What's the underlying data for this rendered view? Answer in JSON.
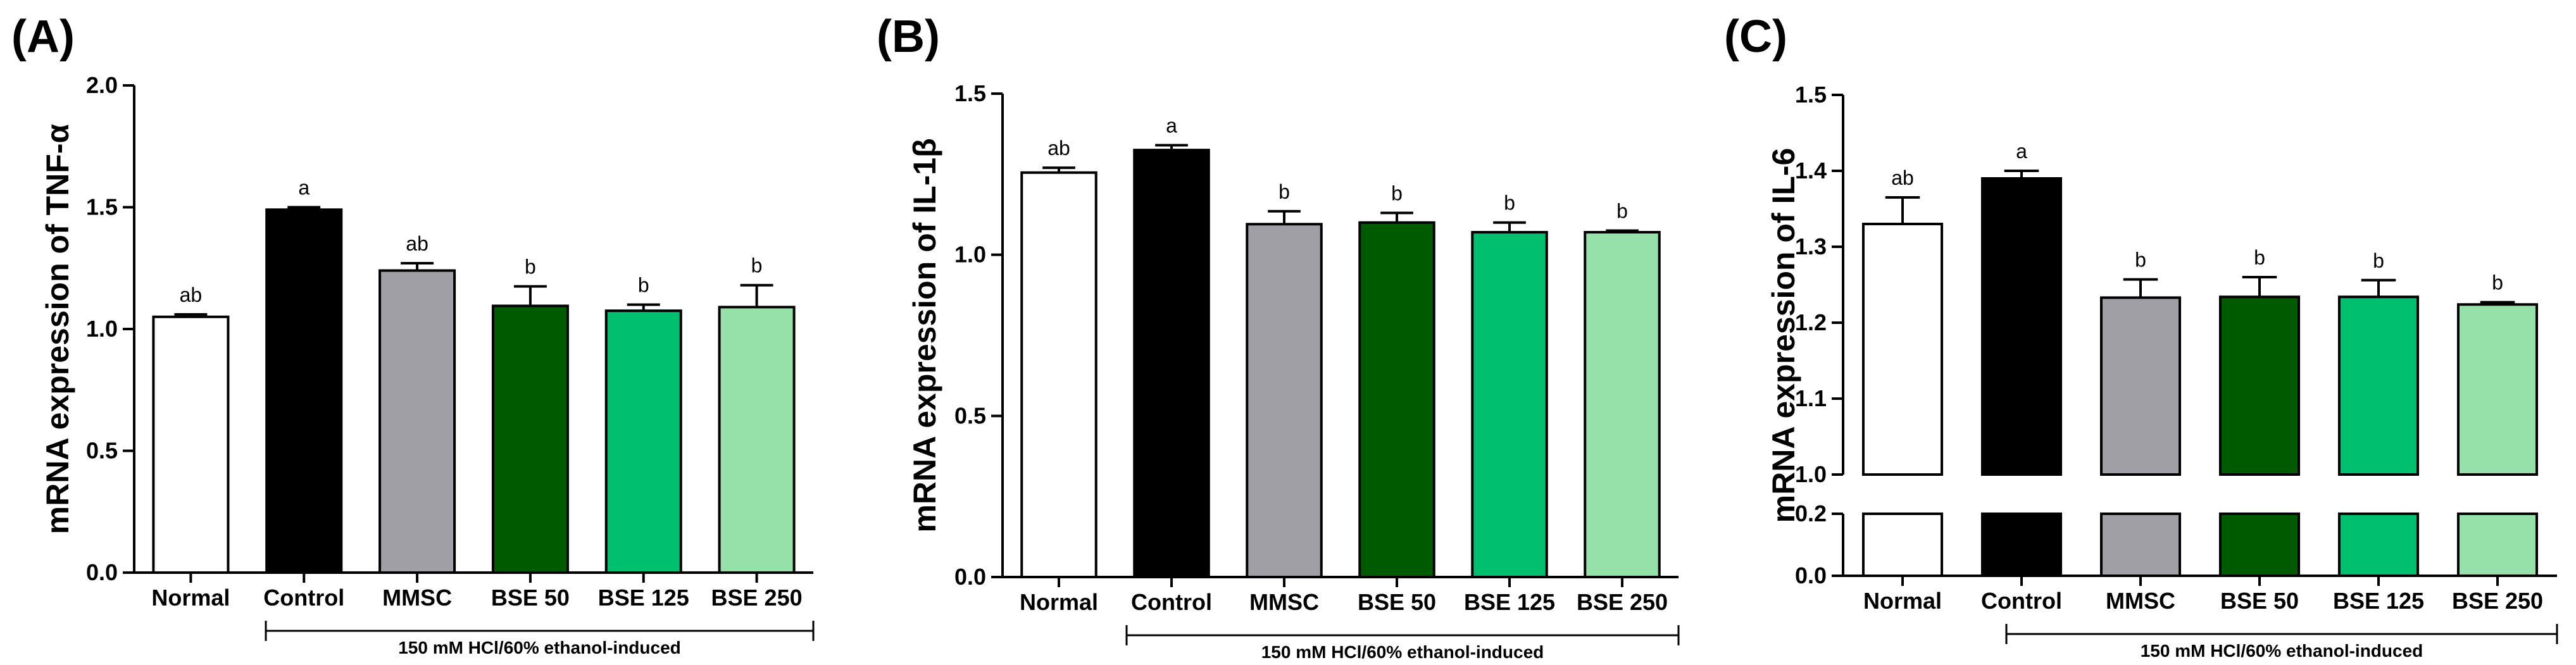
{
  "chart_data": [
    {
      "type": "bar",
      "panel": "(A)",
      "ylabel": "mRNA expression of TNF-α",
      "xlabel": "",
      "ylim": [
        0,
        2.0
      ],
      "yticks": [
        0.0,
        0.5,
        1.0,
        1.5,
        2.0
      ],
      "ytick_labels": [
        "0.0",
        "0.5",
        "1.0",
        "1.5",
        "2.0"
      ],
      "categories": [
        "Normal",
        "Control",
        "MMSC",
        "BSE 50",
        "BSE 125",
        "BSE 250"
      ],
      "values": [
        1.05,
        1.49,
        1.24,
        1.095,
        1.075,
        1.09
      ],
      "errors": [
        0.01,
        0.01,
        0.03,
        0.08,
        0.025,
        0.09
      ],
      "labels": [
        "ab",
        "a",
        "ab",
        "b",
        "b",
        "b"
      ],
      "colors": [
        "#ffffff",
        "#000000",
        "#a09fa6",
        "#005a00",
        "#00c070",
        "#96e0aa"
      ],
      "group_label": "150 mM HCl/60% ethanol-induced",
      "axis_break": null
    },
    {
      "type": "bar",
      "panel": "(B)",
      "ylabel": "mRNA expression of IL-1β",
      "xlabel": "",
      "ylim": [
        0,
        1.5
      ],
      "yticks": [
        0.0,
        0.5,
        1.0,
        1.5
      ],
      "ytick_labels": [
        "0.0",
        "0.5",
        "1.0",
        "1.5"
      ],
      "categories": [
        "Normal",
        "Control",
        "MMSC",
        "BSE 50",
        "BSE 125",
        "BSE 250"
      ],
      "values": [
        1.255,
        1.325,
        1.095,
        1.1,
        1.07,
        1.07
      ],
      "errors": [
        0.015,
        0.015,
        0.04,
        0.03,
        0.03,
        0.005
      ],
      "labels": [
        "ab",
        "a",
        "b",
        "b",
        "b",
        "b"
      ],
      "colors": [
        "#ffffff",
        "#000000",
        "#a09fa6",
        "#005a00",
        "#00c070",
        "#96e0aa"
      ],
      "group_label": "150 mM HCl/60% ethanol-induced",
      "axis_break": null
    },
    {
      "type": "bar",
      "panel": "(C)",
      "ylabel": "mRNA expression of IL-6",
      "xlabel": "",
      "ylim": [
        0,
        1.5
      ],
      "yticks": [
        0.0,
        0.2,
        1.0,
        1.1,
        1.2,
        1.3,
        1.4,
        1.5
      ],
      "ytick_labels": [
        "0.0",
        "0.2",
        "1.0",
        "1.1",
        "1.2",
        "1.3",
        "1.4",
        "1.5"
      ],
      "categories": [
        "Normal",
        "Control",
        "MMSC",
        "BSE 50",
        "BSE 125",
        "BSE 250"
      ],
      "values": [
        1.33,
        1.39,
        1.233,
        1.234,
        1.234,
        1.224
      ],
      "errors": [
        0.035,
        0.01,
        0.024,
        0.026,
        0.022,
        0.003
      ],
      "labels": [
        "ab",
        "a",
        "b",
        "b",
        "b",
        "b"
      ],
      "colors": [
        "#ffffff",
        "#000000",
        "#a09fa6",
        "#005a00",
        "#00c070",
        "#96e0aa"
      ],
      "group_label": "150 mM HCl/60% ethanol-induced",
      "axis_break": [
        0.2,
        1.0
      ]
    }
  ]
}
